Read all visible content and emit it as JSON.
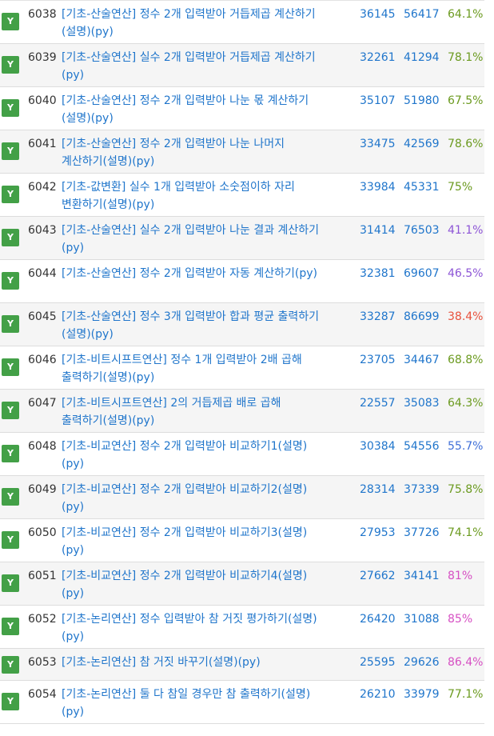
{
  "status_label": "Y",
  "colors": {
    "link": "#1f75cb",
    "status_badge": "#43a047",
    "rate_green": "#6b9a1f",
    "rate_blue": "#3f6fd8",
    "rate_purple": "#8d55d6",
    "rate_red": "#e8513c",
    "rate_magenta": "#d64fc3"
  },
  "problems": [
    {
      "id": "6038",
      "title": "[기초-산술연산] 정수 2개 입력받아 거듭제곱 계산하기(설명)(py)",
      "solved": "36145",
      "submitted": "56417",
      "rate": "64.1%",
      "rate_color": "#6b9a1f"
    },
    {
      "id": "6039",
      "title": "[기초-산술연산] 실수 2개 입력받아 거듭제곱 계산하기(py)",
      "solved": "32261",
      "submitted": "41294",
      "rate": "78.1%",
      "rate_color": "#6b9a1f"
    },
    {
      "id": "6040",
      "title": "[기초-산술연산] 정수 2개 입력받아 나눈 몫 계산하기(설명)(py)",
      "solved": "35107",
      "submitted": "51980",
      "rate": "67.5%",
      "rate_color": "#6b9a1f"
    },
    {
      "id": "6041",
      "title": "[기초-산술연산] 정수 2개 입력받아 나눈 나머지 계산하기(설명)(py)",
      "solved": "33475",
      "submitted": "42569",
      "rate": "78.6%",
      "rate_color": "#6b9a1f"
    },
    {
      "id": "6042",
      "title": "[기초-값변환] 실수 1개 입력받아 소숫점이하 자리 변환하기(설명)(py)",
      "solved": "33984",
      "submitted": "45331",
      "rate": "75%",
      "rate_color": "#6b9a1f"
    },
    {
      "id": "6043",
      "title": "[기초-산술연산] 실수 2개 입력받아 나눈 결과 계산하기(py)",
      "solved": "31414",
      "submitted": "76503",
      "rate": "41.1%",
      "rate_color": "#8d55d6"
    },
    {
      "id": "6044",
      "title": "[기초-산술연산] 정수 2개 입력받아 자동 계산하기(py)",
      "solved": "32381",
      "submitted": "69607",
      "rate": "46.5%",
      "rate_color": "#8d55d6"
    },
    {
      "id": "6045",
      "title": "[기초-산술연산] 정수 3개 입력받아 합과 평균 출력하기(설명)(py)",
      "solved": "33287",
      "submitted": "86699",
      "rate": "38.4%",
      "rate_color": "#e8513c"
    },
    {
      "id": "6046",
      "title": "[기초-비트시프트연산] 정수 1개 입력받아 2배 곱해 출력하기(설명)(py)",
      "solved": "23705",
      "submitted": "34467",
      "rate": "68.8%",
      "rate_color": "#6b9a1f"
    },
    {
      "id": "6047",
      "title": "[기초-비트시프트연산] 2의 거듭제곱 배로 곱해 출력하기(설명)(py)",
      "solved": "22557",
      "submitted": "35083",
      "rate": "64.3%",
      "rate_color": "#6b9a1f"
    },
    {
      "id": "6048",
      "title": "[기초-비교연산] 정수 2개 입력받아 비교하기1(설명)(py)",
      "solved": "30384",
      "submitted": "54556",
      "rate": "55.7%",
      "rate_color": "#3f6fd8"
    },
    {
      "id": "6049",
      "title": "[기초-비교연산] 정수 2개 입력받아 비교하기2(설명)(py)",
      "solved": "28314",
      "submitted": "37339",
      "rate": "75.8%",
      "rate_color": "#6b9a1f"
    },
    {
      "id": "6050",
      "title": "[기초-비교연산] 정수 2개 입력받아 비교하기3(설명)(py)",
      "solved": "27953",
      "submitted": "37726",
      "rate": "74.1%",
      "rate_color": "#6b9a1f"
    },
    {
      "id": "6051",
      "title": "[기초-비교연산] 정수 2개 입력받아 비교하기4(설명)(py)",
      "solved": "27662",
      "submitted": "34141",
      "rate": "81%",
      "rate_color": "#d64fc3"
    },
    {
      "id": "6052",
      "title": "[기초-논리연산] 정수 입력받아 참 거짓 평가하기(설명)(py)",
      "solved": "26420",
      "submitted": "31088",
      "rate": "85%",
      "rate_color": "#d64fc3"
    },
    {
      "id": "6053",
      "title": "[기초-논리연산] 참 거짓 바꾸기(설명)(py)",
      "solved": "25595",
      "submitted": "29626",
      "rate": "86.4%",
      "rate_color": "#d64fc3"
    },
    {
      "id": "6054",
      "title": "[기초-논리연산] 둘 다 참일 경우만 참 출력하기(설명)(py)",
      "solved": "26210",
      "submitted": "33979",
      "rate": "77.1%",
      "rate_color": "#6b9a1f"
    }
  ]
}
